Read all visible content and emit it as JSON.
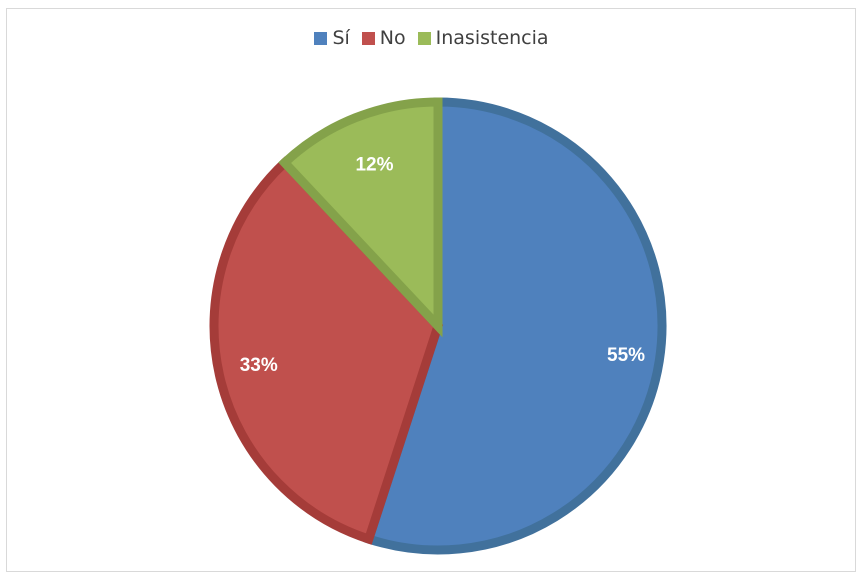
{
  "chart_data": {
    "type": "pie",
    "title": "",
    "categories": [
      "Sí",
      "No",
      "Inasistencia"
    ],
    "values": [
      55,
      33,
      12
    ],
    "labels": [
      "55%",
      "33%",
      "12%"
    ],
    "colors": [
      "#4F81BD",
      "#C0504D",
      "#9BBB59"
    ],
    "border_colors": [
      "#41719C",
      "#A53C39",
      "#84A24A"
    ],
    "legend_position": "top",
    "start": "12 o'clock",
    "direction": "clockwise"
  }
}
